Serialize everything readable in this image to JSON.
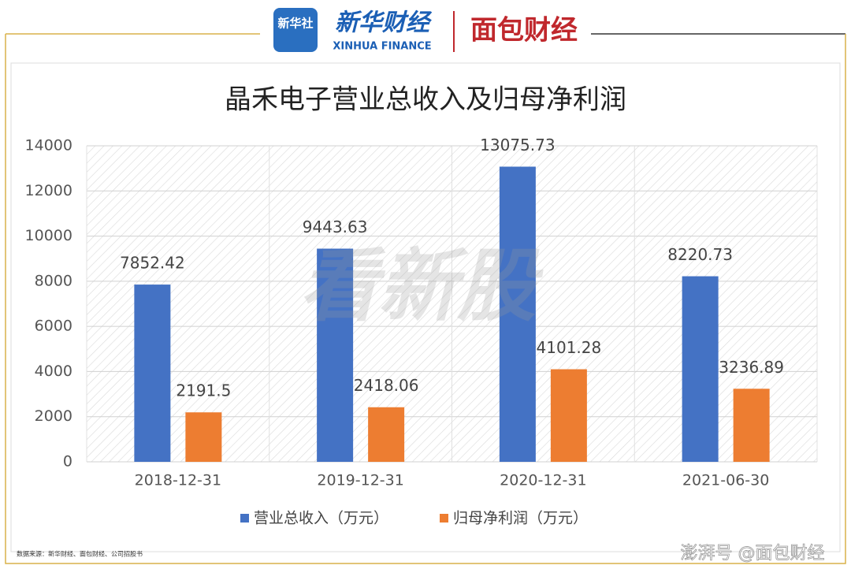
{
  "header": {
    "badge": "新华社",
    "brand": "新华财经",
    "brand_en": "XINHUA FINANCE",
    "partner": "面包财经"
  },
  "chart_data": {
    "type": "bar",
    "title": "晶禾电子营业总收入及归母净利润",
    "categories": [
      "2018-12-31",
      "2019-12-31",
      "2020-12-31",
      "2021-06-30"
    ],
    "series": [
      {
        "name": "营业总收入（万元）",
        "color": "#4472c4",
        "values": [
          7852.42,
          9443.63,
          13075.73,
          8220.73
        ]
      },
      {
        "name": "归母净利润（万元）",
        "color": "#ed7d31",
        "values": [
          2191.5,
          2418.06,
          4101.28,
          3236.89
        ]
      }
    ],
    "ylim": [
      0,
      14000
    ],
    "yticks": [
      0,
      2000,
      4000,
      6000,
      8000,
      10000,
      12000,
      14000
    ],
    "grid": true,
    "legend": "bottom"
  },
  "footer": {
    "source": "数据来源：新华财经、面包财经、公司招股书"
  },
  "watermarks": {
    "center": "看新股",
    "corner": "澎湃号 @面包财经"
  }
}
